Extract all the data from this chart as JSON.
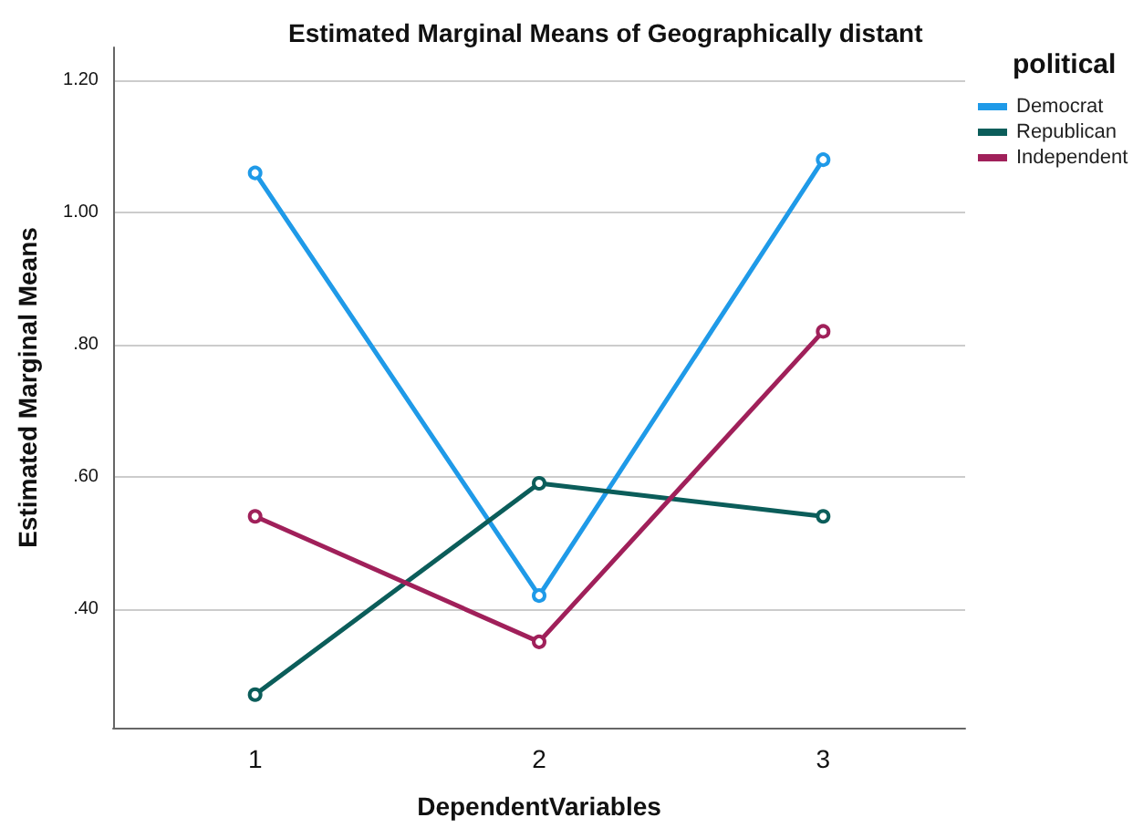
{
  "chart_data": {
    "type": "line",
    "title": "Estimated Marginal Means of Geographically distant",
    "xlabel": "DependentVariables",
    "ylabel": "Estimated Marginal Means",
    "legend_title": "political",
    "categories": [
      "1",
      "2",
      "3"
    ],
    "series": [
      {
        "name": "Democrat",
        "color": "#1f9ae8",
        "values": [
          1.06,
          0.42,
          1.08
        ]
      },
      {
        "name": "Republican",
        "color": "#0b5d5a",
        "values": [
          0.27,
          0.59,
          0.54
        ]
      },
      {
        "name": "Independent",
        "color": "#a0205a",
        "values": [
          0.54,
          0.35,
          0.82
        ]
      }
    ],
    "ylim": [
      0.22,
      1.25
    ],
    "yticks": [
      {
        "value": 0.4,
        "label": ".40"
      },
      {
        "value": 0.6,
        "label": ".60"
      },
      {
        "value": 0.8,
        "label": ".80"
      },
      {
        "value": 1.0,
        "label": "1.00"
      },
      {
        "value": 1.2,
        "label": "1.20"
      }
    ],
    "grid": "y",
    "legend": "top right",
    "marker": "circle",
    "line_style": "solid"
  }
}
